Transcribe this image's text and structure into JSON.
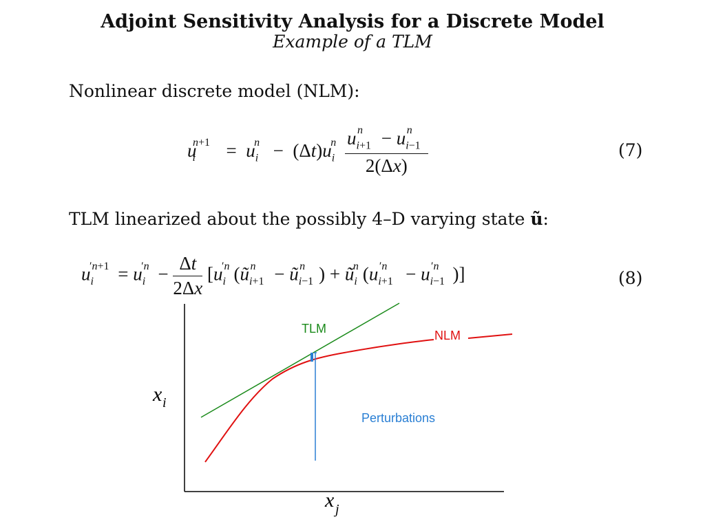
{
  "slide": {
    "title": "Adjoint Sensitivity Analysis for a Discrete Model",
    "subtitle": "Example of a TLM"
  },
  "section1": {
    "text": "Nonlinear discrete model (NLM):"
  },
  "section2": {
    "text": "TLM linearized about the possibly 4–D varying state ",
    "state_symbol": "ũ",
    "trailing": ":"
  },
  "equation7": {
    "number": "(7)"
  },
  "equation8": {
    "number": "(8)"
  },
  "diagram": {
    "labels": {
      "tlm": "TLM",
      "nlm": "NLM",
      "perturbations": "Perturbations",
      "y_axis_var": "x",
      "y_axis_sub": "i",
      "x_axis_var": "x",
      "x_axis_sub": "j"
    },
    "colors": {
      "tlm": "#1a8a1a",
      "nlm": "#e01010",
      "perturbations": "#2a7fd4",
      "axes": "#000000"
    }
  }
}
